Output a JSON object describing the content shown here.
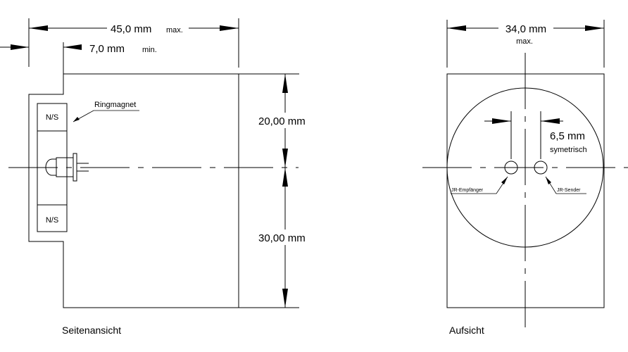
{
  "side_view": {
    "title": "Seitenansicht",
    "width_dim": {
      "value": "45,0 mm",
      "note": "max."
    },
    "offset_dim": {
      "value": "7,0 mm",
      "note": "min."
    },
    "upper_height": "20,00 mm",
    "lower_height": "30,00 mm",
    "magnet_label": "Ringmagnet",
    "pole_top": "N/S",
    "pole_bottom": "N/S"
  },
  "top_view": {
    "title": "Aufsicht",
    "width_dim": {
      "value": "34,0 mm",
      "note": "max."
    },
    "spacing_dim": {
      "value": "6,5 mm",
      "note": "symetrisch"
    },
    "receiver_label": "JR-Empfänger",
    "sender_label": "JR-Sender"
  }
}
